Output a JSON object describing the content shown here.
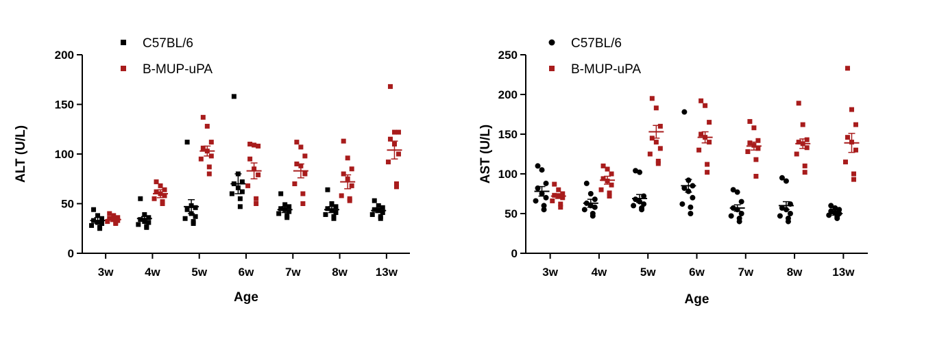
{
  "chart_data": [
    {
      "type": "scatter",
      "ylabel": "ALT (U/L)",
      "xlabel": "Age",
      "categories": [
        "3w",
        "4w",
        "5w",
        "6w",
        "7w",
        "8w",
        "13w"
      ],
      "ylim": [
        0,
        200
      ],
      "yticks": [
        0,
        50,
        100,
        150,
        200
      ],
      "marker": "square",
      "legend_position": "top",
      "series": [
        {
          "name": "C57BL/6",
          "color": "#000000",
          "mean": [
            33,
            35,
            47,
            70,
            44,
            44,
            43
          ],
          "sem": [
            3,
            2,
            7,
            10,
            3,
            3,
            2
          ],
          "points": [
            [
              44,
              38,
              35,
              33,
              31,
              30,
              28,
              26,
              25
            ],
            [
              55,
              39,
              36,
              34,
              32,
              31,
              29,
              27,
              26
            ],
            [
              112,
              48,
              46,
              44,
              40,
              37,
              35,
              32,
              30
            ],
            [
              158,
              80,
              72,
              70,
              66,
              62,
              60,
              55,
              47
            ],
            [
              60,
              49,
              47,
              45,
              44,
              42,
              40,
              38,
              36
            ],
            [
              64,
              50,
              47,
              45,
              43,
              41,
              39,
              37,
              35
            ],
            [
              53,
              48,
              46,
              44,
              43,
              41,
              39,
              37,
              35
            ]
          ]
        },
        {
          "name": "B-MUP-uPA",
          "color": "#a81c1c",
          "mean": [
            34,
            60,
            103,
            83,
            83,
            72,
            104
          ],
          "sem": [
            2,
            4,
            5,
            8,
            7,
            7,
            9
          ],
          "points": [
            [
              40,
              38,
              36,
              35,
              34,
              33,
              32,
              31,
              30
            ],
            [
              72,
              68,
              64,
              62,
              60,
              58,
              55,
              52,
              50
            ],
            [
              137,
              128,
              112,
              106,
              103,
              98,
              95,
              87,
              80
            ],
            [
              110,
              109,
              108,
              95,
              85,
              79,
              68,
              55,
              50
            ],
            [
              112,
              107,
              98,
              90,
              88,
              80,
              70,
              60,
              50
            ],
            [
              113,
              96,
              85,
              80,
              75,
              68,
              58,
              55,
              53
            ],
            [
              168,
              122,
              122,
              115,
              110,
              100,
              92,
              70,
              67
            ]
          ]
        }
      ]
    },
    {
      "type": "scatter",
      "ylabel": "AST (U/L)",
      "xlabel": "Age",
      "categories": [
        "3w",
        "4w",
        "5w",
        "6w",
        "7w",
        "8w",
        "13w"
      ],
      "ylim": [
        0,
        250
      ],
      "yticks": [
        0,
        50,
        100,
        150,
        200,
        250
      ],
      "legend_position": "top",
      "series": [
        {
          "name": "C57BL/6",
          "color": "#000000",
          "marker": "circle",
          "mean": [
            78,
            63,
            69,
            85,
            57,
            60,
            50
          ],
          "sem": [
            6,
            5,
            5,
            8,
            4,
            5,
            2
          ],
          "points": [
            [
              110,
              105,
              88,
              82,
              75,
              70,
              66,
              60,
              55
            ],
            [
              88,
              75,
              68,
              63,
              60,
              58,
              55,
              50,
              47
            ],
            [
              104,
              102,
              72,
              68,
              65,
              62,
              60,
              57,
              55
            ],
            [
              178,
              92,
              85,
              82,
              78,
              70,
              62,
              58,
              50
            ],
            [
              80,
              77,
              65,
              57,
              55,
              50,
              47,
              44,
              40
            ],
            [
              95,
              91,
              62,
              57,
              55,
              50,
              47,
              44,
              40
            ],
            [
              60,
              57,
              55,
              53,
              51,
              50,
              48,
              46,
              44
            ]
          ]
        },
        {
          "name": "B-MUP-uPA",
          "color": "#a81c1c",
          "marker": "square",
          "mean": [
            72,
            92,
            153,
            146,
            135,
            138,
            139
          ],
          "sem": [
            3,
            5,
            8,
            7,
            5,
            6,
            12
          ],
          "points": [
            [
              87,
              80,
              75,
              73,
              72,
              70,
              66,
              62,
              58
            ],
            [
              110,
              106,
              100,
              94,
              91,
              86,
              80,
              76,
              72
            ],
            [
              195,
              183,
              160,
              145,
              140,
              132,
              125,
              116,
              113
            ],
            [
              192,
              186,
              165,
              150,
              146,
              140,
              130,
              112,
              102
            ],
            [
              166,
              158,
              142,
              139,
              136,
              132,
              128,
              118,
              97
            ],
            [
              189,
              162,
              143,
              140,
              138,
              133,
              125,
              110,
              102
            ],
            [
              233,
              181,
              162,
              146,
              140,
              130,
              115,
              100,
              93
            ]
          ]
        }
      ]
    }
  ]
}
